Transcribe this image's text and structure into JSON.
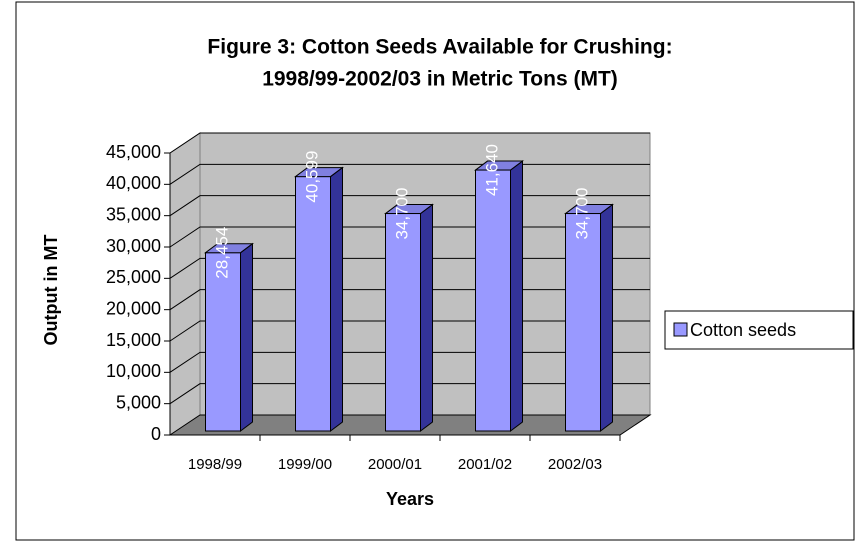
{
  "chart_data": {
    "type": "bar3d",
    "title": [
      "Figure 3: Cotton Seeds Available for Crushing:",
      "1998/99-2002/03 in Metric Tons (MT)"
    ],
    "x_label": "Years",
    "y_label": "Output in MT",
    "categories": [
      "1998/99",
      "1999/00",
      "2000/01",
      "2001/02",
      "2002/03"
    ],
    "series": [
      {
        "name": "Cotton seeds",
        "color": "#9999ff",
        "values": [
          28454,
          40599,
          34700,
          41640,
          34700
        ],
        "value_labels": [
          "28,454",
          "40,599",
          "34,700",
          "41,640",
          "34,700"
        ]
      }
    ],
    "ylim": [
      0,
      45000
    ],
    "yticks": [
      0,
      {
        "value": 5000,
        "label": "5,000"
      },
      {
        "value": 10000,
        "label": "10,000"
      },
      {
        "value": 15000,
        "label": "15,000"
      },
      {
        "value": 20000,
        "label": "20,000"
      },
      {
        "value": 25000,
        "label": "25,000"
      },
      {
        "value": 30000,
        "label": "30,000"
      },
      {
        "value": 35000,
        "label": "35,000"
      },
      {
        "value": 40000,
        "label": "40,000"
      },
      {
        "value": 45000,
        "label": "45,000"
      }
    ],
    "grid": true,
    "legend": "right"
  }
}
